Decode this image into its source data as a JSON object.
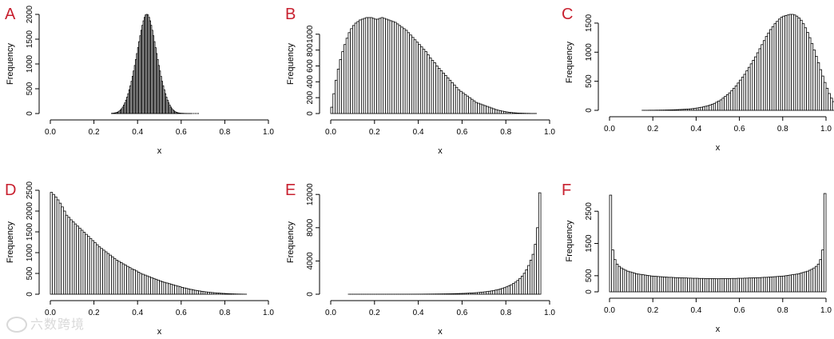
{
  "panels": [
    {
      "letter": "A",
      "xlabel": "x",
      "ylabel": "Frequency",
      "xlim": [
        0,
        1
      ],
      "xticks": [
        "0.0",
        "0.2",
        "0.4",
        "0.6",
        "0.8",
        "1.0"
      ],
      "ylim": [
        0,
        2000
      ],
      "yticks": [
        0,
        500,
        1000,
        1500,
        2000
      ],
      "bin_start": 0.28,
      "bin_width": 0.005,
      "values": [
        4,
        6,
        9,
        13,
        18,
        26,
        36,
        52,
        72,
        98,
        130,
        170,
        215,
        270,
        330,
        400,
        480,
        560,
        650,
        750,
        860,
        970,
        1090,
        1210,
        1330,
        1450,
        1570,
        1680,
        1780,
        1870,
        1940,
        1990,
        2000,
        1990,
        1940,
        1870,
        1780,
        1680,
        1570,
        1450,
        1330,
        1210,
        1090,
        970,
        860,
        750,
        650,
        560,
        480,
        400,
        330,
        270,
        215,
        170,
        130,
        98,
        72,
        52,
        36,
        26,
        18,
        13,
        9,
        6,
        5,
        4,
        3,
        2,
        2,
        1,
        1,
        1,
        1,
        1,
        0,
        1,
        0,
        1,
        0,
        1,
        0,
        0
      ]
    },
    {
      "letter": "B",
      "xlabel": "x",
      "ylabel": "Frequency",
      "xlim": [
        0,
        1
      ],
      "xticks": [
        "0.0",
        "0.2",
        "0.4",
        "0.6",
        "0.8",
        "1.0"
      ],
      "ylim": [
        0,
        1250
      ],
      "yticks": [
        0,
        200,
        400,
        600,
        800,
        1000
      ],
      "bin_start": 0.0,
      "bin_width": 0.01,
      "values": [
        80,
        250,
        420,
        560,
        680,
        780,
        870,
        950,
        1020,
        1070,
        1110,
        1140,
        1160,
        1180,
        1190,
        1200,
        1210,
        1210,
        1210,
        1200,
        1190,
        1190,
        1200,
        1210,
        1200,
        1190,
        1180,
        1170,
        1160,
        1150,
        1130,
        1110,
        1090,
        1070,
        1050,
        1020,
        990,
        960,
        930,
        900,
        870,
        840,
        810,
        780,
        740,
        700,
        670,
        640,
        600,
        570,
        540,
        510,
        480,
        450,
        420,
        390,
        360,
        330,
        300,
        280,
        260,
        240,
        220,
        200,
        180,
        160,
        140,
        130,
        120,
        110,
        100,
        90,
        80,
        70,
        60,
        50,
        42,
        36,
        30,
        25,
        20,
        16,
        13,
        10,
        8,
        6,
        5,
        4,
        3,
        2,
        2,
        1,
        1,
        1
      ]
    },
    {
      "letter": "C",
      "xlabel": "x",
      "ylabel": "Frequency",
      "xlim": [
        0,
        1
      ],
      "xticks": [
        "0.0",
        "0.2",
        "0.4",
        "0.6",
        "0.8",
        "1.0"
      ],
      "ylim": [
        0,
        1650
      ],
      "yticks": [
        0,
        500,
        1000,
        1500
      ],
      "bin_start": 0.15,
      "bin_width": 0.01,
      "values": [
        1,
        1,
        1,
        2,
        2,
        2,
        3,
        3,
        4,
        4,
        5,
        6,
        7,
        8,
        9,
        10,
        12,
        14,
        16,
        18,
        20,
        23,
        26,
        30,
        35,
        40,
        46,
        53,
        60,
        70,
        80,
        92,
        105,
        120,
        140,
        160,
        180,
        210,
        240,
        270,
        300,
        340,
        380,
        420,
        470,
        520,
        570,
        620,
        680,
        740,
        800,
        860,
        920,
        990,
        1060,
        1130,
        1200,
        1270,
        1330,
        1390,
        1440,
        1490,
        1530,
        1570,
        1600,
        1620,
        1630,
        1640,
        1650,
        1650,
        1640,
        1620,
        1590,
        1550,
        1490,
        1420,
        1340,
        1250,
        1150,
        1040,
        930,
        820,
        700,
        590,
        480,
        380,
        290,
        210,
        150,
        100,
        60,
        35,
        18,
        8,
        3,
        1
      ]
    },
    {
      "letter": "D",
      "xlabel": "x",
      "ylabel": "Frequency",
      "xlim": [
        0,
        1
      ],
      "xticks": [
        "0.0",
        "0.2",
        "0.4",
        "0.6",
        "0.8",
        "1.0"
      ],
      "ylim": [
        0,
        2500
      ],
      "yticks": [
        0,
        500,
        1000,
        1500,
        2000,
        2500
      ],
      "bin_start": 0.0,
      "bin_width": 0.01,
      "values": [
        2450,
        2400,
        2340,
        2270,
        2190,
        2100,
        2000,
        1900,
        1850,
        1790,
        1740,
        1690,
        1640,
        1590,
        1540,
        1490,
        1440,
        1390,
        1340,
        1290,
        1240,
        1190,
        1140,
        1100,
        1060,
        1020,
        980,
        940,
        900,
        860,
        820,
        790,
        760,
        730,
        700,
        670,
        640,
        610,
        590,
        560,
        530,
        500,
        480,
        460,
        440,
        420,
        400,
        380,
        360,
        340,
        320,
        300,
        285,
        270,
        255,
        240,
        225,
        210,
        195,
        180,
        165,
        152,
        140,
        128,
        116,
        105,
        95,
        86,
        78,
        70,
        62,
        55,
        49,
        44,
        39,
        34,
        30,
        26,
        22,
        19,
        16,
        13,
        11,
        9,
        7,
        5,
        4,
        3,
        2,
        1
      ]
    },
    {
      "letter": "E",
      "xlabel": "x",
      "ylabel": "Frequency",
      "xlim": [
        0,
        1
      ],
      "xticks": [
        "0.0",
        "0.2",
        "0.4",
        "0.6",
        "0.8",
        "1.0"
      ],
      "ylim": [
        0,
        12500
      ],
      "yticks": [
        0,
        4000,
        8000,
        12000
      ],
      "bin_start": 0.08,
      "bin_width": 0.01,
      "values": [
        1,
        1,
        1,
        1,
        1,
        1,
        1,
        1,
        1,
        1,
        1,
        1,
        1,
        2,
        2,
        2,
        2,
        2,
        3,
        3,
        3,
        3,
        4,
        4,
        5,
        5,
        6,
        6,
        7,
        8,
        9,
        10,
        11,
        12,
        14,
        16,
        18,
        20,
        22,
        25,
        28,
        31,
        35,
        39,
        43,
        48,
        53,
        59,
        65,
        72,
        80,
        89,
        99,
        110,
        122,
        136,
        151,
        168,
        187,
        208,
        232,
        258,
        288,
        321,
        358,
        400,
        447,
        500,
        560,
        628,
        705,
        792,
        891,
        1005,
        1135,
        1285,
        1460,
        1660,
        1900,
        2180,
        2520,
        2940,
        3460,
        4100,
        4800,
        6000,
        8000,
        12200
      ]
    },
    {
      "letter": "F",
      "xlabel": "x",
      "ylabel": "Frequency",
      "xlim": [
        0,
        1
      ],
      "xticks": [
        "0.0",
        "0.2",
        "0.4",
        "0.6",
        "0.8",
        "1.0"
      ],
      "ylim": [
        0,
        3150
      ],
      "yticks": [
        0,
        500,
        1500,
        2500
      ],
      "bin_start": 0.0,
      "bin_width": 0.01,
      "values": [
        3000,
        1300,
        1000,
        860,
        790,
        740,
        700,
        670,
        640,
        620,
        600,
        580,
        560,
        550,
        540,
        530,
        520,
        510,
        500,
        490,
        485,
        480,
        475,
        470,
        465,
        460,
        455,
        450,
        450,
        445,
        440,
        440,
        435,
        435,
        430,
        430,
        425,
        425,
        420,
        420,
        420,
        415,
        415,
        415,
        410,
        410,
        410,
        410,
        410,
        405,
        405,
        410,
        410,
        410,
        410,
        410,
        415,
        415,
        415,
        420,
        420,
        420,
        425,
        425,
        430,
        430,
        435,
        435,
        440,
        440,
        445,
        450,
        450,
        455,
        460,
        465,
        470,
        475,
        480,
        485,
        490,
        500,
        510,
        520,
        530,
        540,
        550,
        560,
        580,
        600,
        620,
        640,
        670,
        700,
        740,
        790,
        860,
        1000,
        1300,
        3050
      ]
    }
  ],
  "watermark": "六数跨境",
  "colors": {
    "letter": "#c8202f",
    "bar_fill": "#ffffff",
    "bar_stroke": "#000000"
  }
}
